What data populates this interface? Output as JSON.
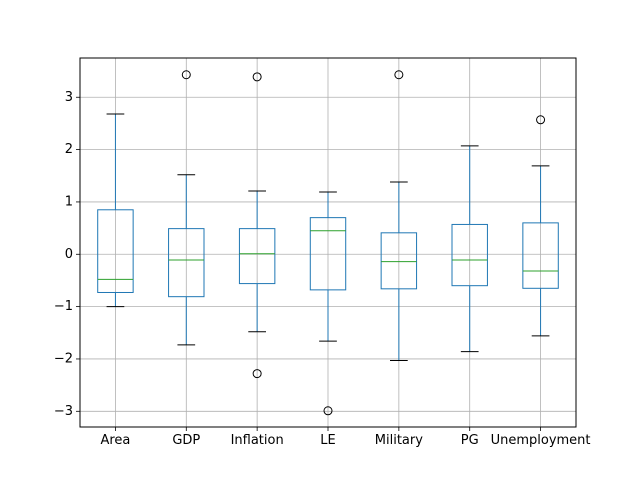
{
  "chart_data": {
    "type": "boxplot",
    "title": "",
    "xlabel": "",
    "ylabel": "",
    "ylim": [
      -3.3,
      3.75
    ],
    "grid": true,
    "yticks": [
      -3,
      -2,
      -1,
      0,
      1,
      2,
      3
    ],
    "ytick_labels": [
      "−3",
      "−2",
      "−1",
      "0",
      "1",
      "2",
      "3"
    ],
    "categories": [
      "Area",
      "GDP",
      "Inflation",
      "LE",
      "Military",
      "PG",
      "Unemployment"
    ],
    "boxes": [
      {
        "whisker_low": -1.0,
        "q1": -0.73,
        "median": -0.48,
        "q3": 0.85,
        "whisker_high": 2.68,
        "outliers": []
      },
      {
        "whisker_low": -1.73,
        "q1": -0.81,
        "median": -0.11,
        "q3": 0.49,
        "whisker_high": 1.52,
        "outliers": [
          3.43
        ]
      },
      {
        "whisker_low": -1.48,
        "q1": -0.56,
        "median": 0.01,
        "q3": 0.49,
        "whisker_high": 1.21,
        "outliers": [
          3.39,
          -2.28
        ]
      },
      {
        "whisker_low": -1.66,
        "q1": -0.68,
        "median": 0.45,
        "q3": 0.7,
        "whisker_high": 1.19,
        "outliers": [
          -2.99
        ]
      },
      {
        "whisker_low": -2.03,
        "q1": -0.66,
        "median": -0.14,
        "q3": 0.41,
        "whisker_high": 1.38,
        "outliers": [
          3.43
        ]
      },
      {
        "whisker_low": -1.86,
        "q1": -0.6,
        "median": -0.11,
        "q3": 0.57,
        "whisker_high": 2.07,
        "outliers": []
      },
      {
        "whisker_low": -1.56,
        "q1": -0.65,
        "median": -0.32,
        "q3": 0.6,
        "whisker_high": 1.69,
        "outliers": [
          2.57
        ]
      }
    ],
    "colors": {
      "box": "#1f77b4",
      "median": "#2ca02c",
      "whisker_cap": "#000000",
      "outlier": "#000000",
      "grid": "#b0b0b0",
      "axes": "#000000"
    }
  }
}
